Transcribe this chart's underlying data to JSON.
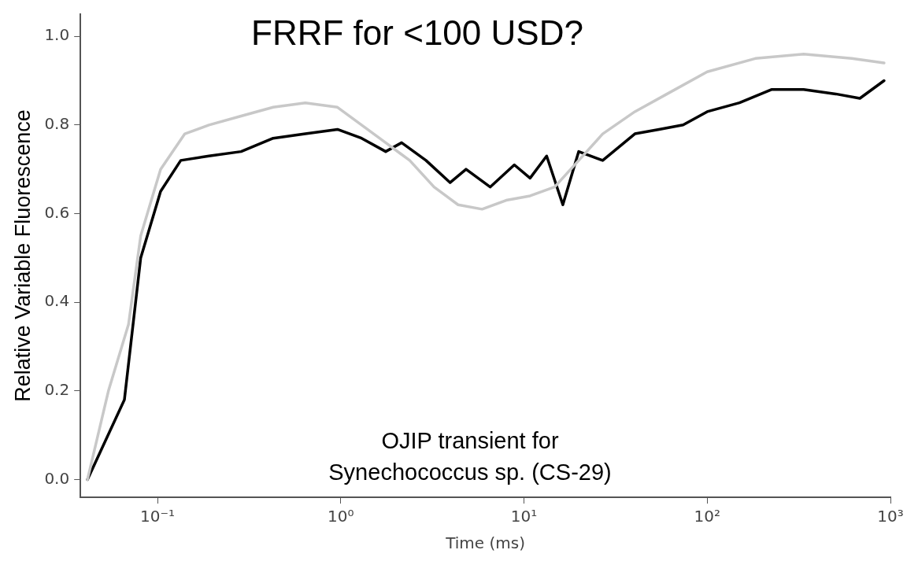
{
  "chart_data": {
    "type": "line",
    "title": "FRRF for <100 USD?",
    "xlabel": "Time (ms)",
    "ylabel": "Relative Variable Fluorescence",
    "annotations": [
      "OJIP transient for\nSynechococcus sp. (CS-29)"
    ],
    "log": "x",
    "xlim": [
      0.038,
      1000
    ],
    "xticks": [
      {
        "value": 0.1,
        "label": "10⁻¹"
      },
      {
        "value": 1,
        "label": "10⁰"
      },
      {
        "value": 10,
        "label": "10¹"
      },
      {
        "value": 100,
        "label": "10²"
      },
      {
        "value": 1000,
        "label": "10³"
      }
    ],
    "ylim": [
      -0.04,
      1.05
    ],
    "yticks": [
      {
        "value": 0,
        "label": "0.0"
      },
      {
        "value": 0.2,
        "label": "0.2"
      },
      {
        "value": 0.4,
        "label": "0.4"
      },
      {
        "value": 0.6,
        "label": "0.6"
      },
      {
        "value": 0.8,
        "label": "0.8"
      },
      {
        "value": 1,
        "label": "1.0"
      }
    ],
    "grid": false,
    "marker": "none",
    "line_style": "solid",
    "series": [
      {
        "color": "#c8c8c8",
        "x": [
          0.0415,
          0.054,
          0.0695,
          0.081,
          0.104,
          0.141,
          0.191,
          0.286,
          0.428,
          0.641,
          0.96,
          1.3,
          1.76,
          2.38,
          3.23,
          4.37,
          5.91,
          8.0,
          10.8,
          14.7,
          19.9,
          26.9,
          40.3,
          60.4,
          100,
          183,
          336,
          615,
          923
        ],
        "values": [
          0,
          0.2,
          0.35,
          0.55,
          0.7,
          0.78,
          0.8,
          0.82,
          0.84,
          0.85,
          0.84,
          0.8,
          0.76,
          0.72,
          0.66,
          0.62,
          0.61,
          0.63,
          0.64,
          0.66,
          0.72,
          0.78,
          0.83,
          0.87,
          0.92,
          0.95,
          0.96,
          0.95,
          0.94
        ]
      },
      {
        "color": "#000000",
        "x": [
          0.0415,
          0.066,
          0.081,
          0.104,
          0.134,
          0.191,
          0.286,
          0.428,
          0.641,
          0.96,
          1.3,
          1.76,
          2.15,
          2.92,
          3.95,
          4.83,
          6.54,
          8.86,
          10.8,
          13.3,
          16.3,
          19.9,
          26.9,
          40.3,
          54.6,
          73.9,
          100,
          150,
          224,
          336,
          503,
          681,
          923
        ],
        "values": [
          0,
          0.18,
          0.5,
          0.65,
          0.72,
          0.73,
          0.74,
          0.77,
          0.78,
          0.79,
          0.77,
          0.74,
          0.76,
          0.72,
          0.67,
          0.7,
          0.66,
          0.71,
          0.68,
          0.73,
          0.62,
          0.74,
          0.72,
          0.78,
          0.79,
          0.8,
          0.83,
          0.85,
          0.88,
          0.88,
          0.87,
          0.86,
          0.9
        ]
      }
    ]
  }
}
